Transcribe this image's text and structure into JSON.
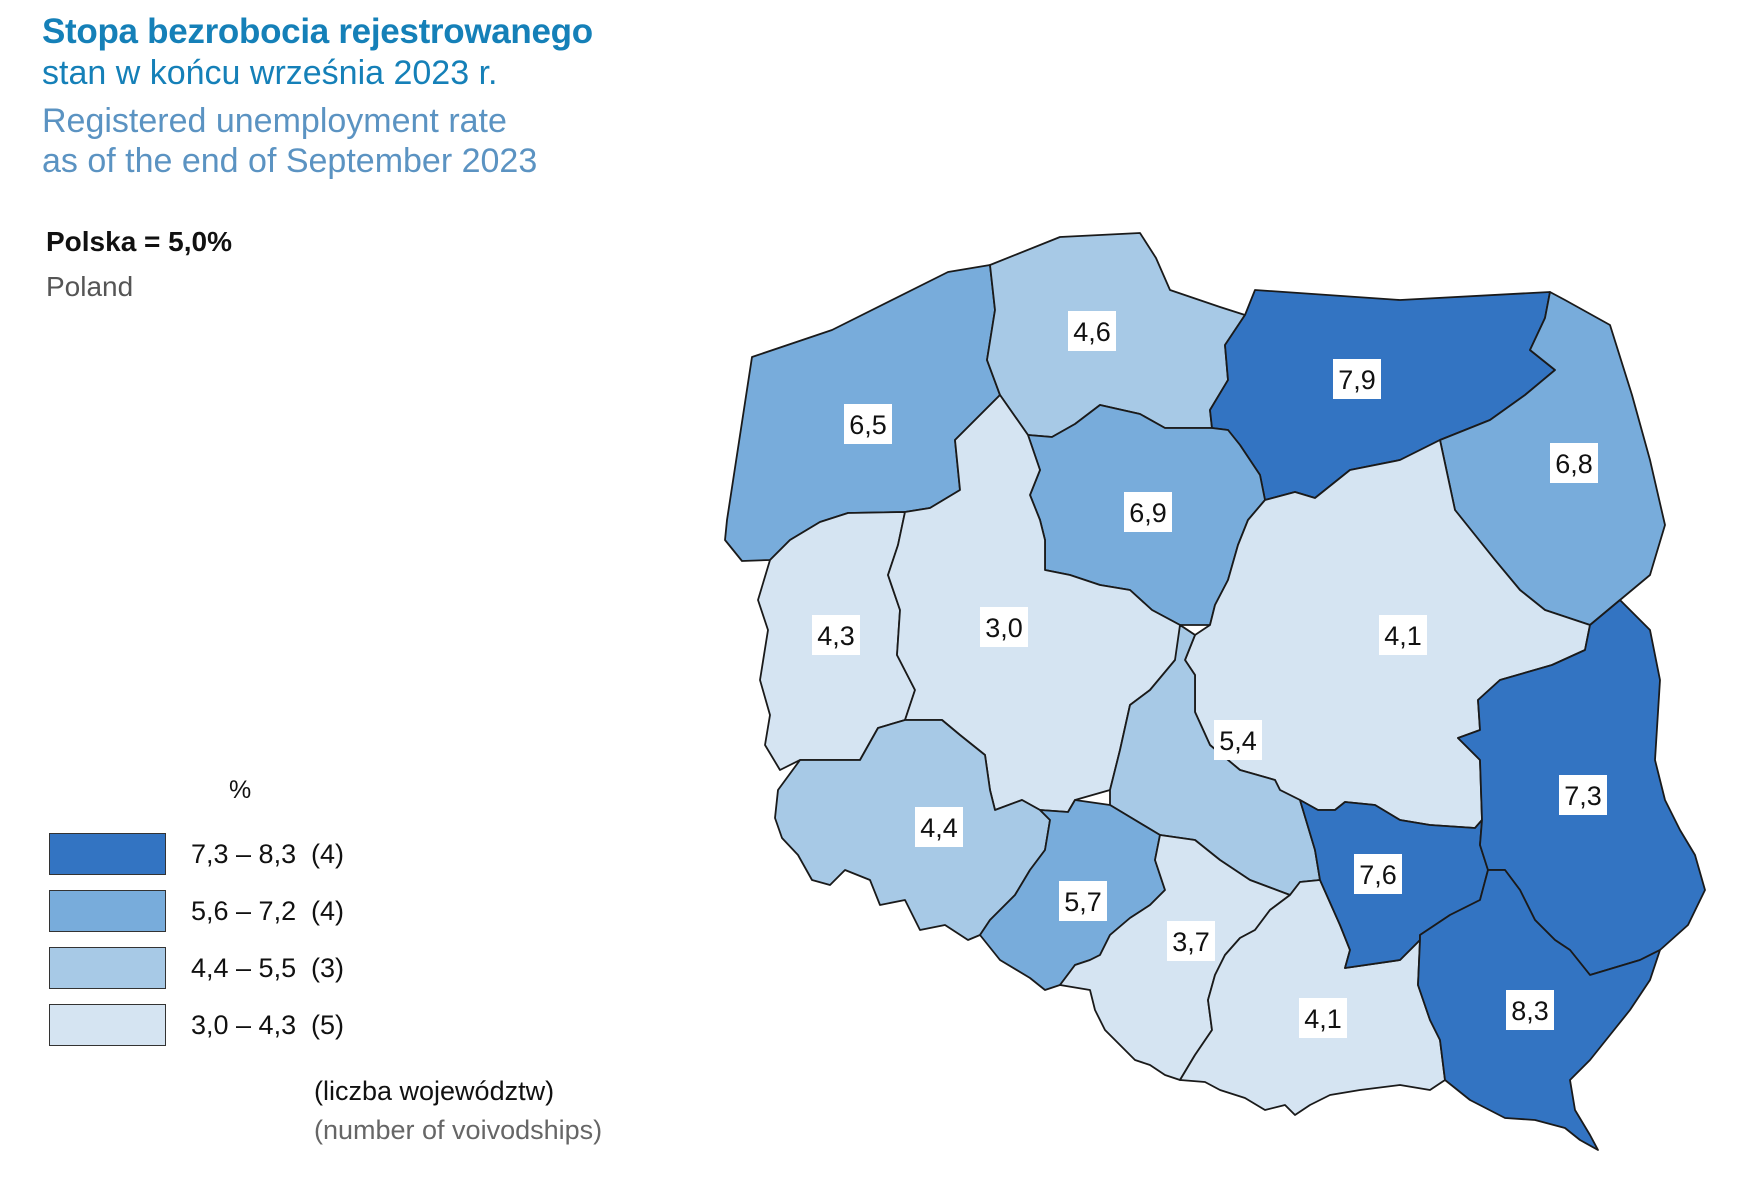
{
  "title": {
    "pl_bold": "Stopa bezrobocia rejestrowanego",
    "pl_sub": "stan w końcu września 2023 r.",
    "en_line1": "Registered unemployment rate",
    "en_line2": "as of the end of September 2023"
  },
  "national": {
    "label_pl": "Polska = 5,0%",
    "label_en": "Poland"
  },
  "legend": {
    "unit": "%",
    "classes": [
      {
        "range": "7,3 – 8,3",
        "count": "(4)",
        "color": "#3374c2"
      },
      {
        "range": "5,6 – 7,2",
        "count": "(4)",
        "color": "#78acdb"
      },
      {
        "range": "4,4 – 5,5",
        "count": "(3)",
        "color": "#a7c9e6"
      },
      {
        "range": "3,0 – 4,3",
        "count": "(5)",
        "color": "#d5e4f2"
      }
    ],
    "footnote_pl": "(liczba województw)",
    "footnote_en": "(number of voivodships)"
  },
  "regions": [
    {
      "id": "zachodniopomorskie",
      "value": "6,5",
      "class": 1
    },
    {
      "id": "pomorskie",
      "value": "4,6",
      "class": 2
    },
    {
      "id": "warminsko-mazurskie",
      "value": "7,9",
      "class": 0
    },
    {
      "id": "podlaskie",
      "value": "6,8",
      "class": 1
    },
    {
      "id": "kujawsko-pomorskie",
      "value": "6,9",
      "class": 1
    },
    {
      "id": "lubuskie",
      "value": "4,3",
      "class": 3
    },
    {
      "id": "wielkopolskie",
      "value": "3,0",
      "class": 3
    },
    {
      "id": "mazowieckie",
      "value": "4,1",
      "class": 3
    },
    {
      "id": "lodzkie",
      "value": "5,4",
      "class": 2
    },
    {
      "id": "dolnoslaskie",
      "value": "4,4",
      "class": 2
    },
    {
      "id": "opolskie",
      "value": "5,7",
      "class": 1
    },
    {
      "id": "lubelskie",
      "value": "7,3",
      "class": 0
    },
    {
      "id": "swietokrzyskie",
      "value": "7,6",
      "class": 0
    },
    {
      "id": "slaskie",
      "value": "3,7",
      "class": 3
    },
    {
      "id": "malopolskie",
      "value": "4,1",
      "class": 3
    },
    {
      "id": "podkarpackie",
      "value": "8,3",
      "class": 0
    }
  ]
}
